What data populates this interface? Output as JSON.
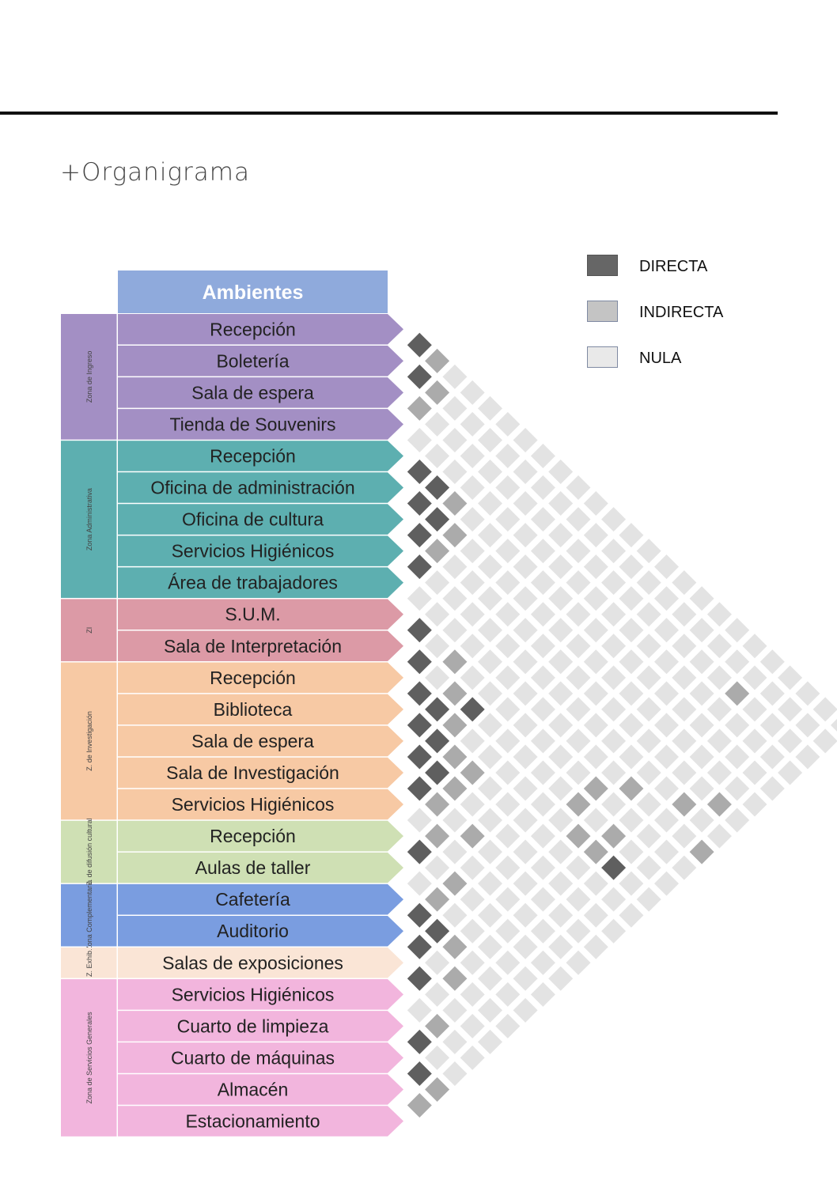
{
  "page": {
    "title": "+Organigrama"
  },
  "legend": [
    {
      "label": "DIRECTA",
      "color": "#666666",
      "border": "#555555"
    },
    {
      "label": "INDIRECTA",
      "color": "#c4c4c4",
      "border": "#7f8aa2"
    },
    {
      "label": "NULA",
      "color": "#e9e9e9",
      "border": "#7f8aa2"
    }
  ],
  "header": {
    "label": "Ambientes",
    "color": "#8faadc"
  },
  "zones": [
    {
      "label": "Zona de Ingreso",
      "color": "#a38fc4",
      "rows": [
        "Recepción",
        "Boletería",
        "Sala de espera",
        "Tienda de Souvenirs"
      ]
    },
    {
      "label": "Zona Administrativa",
      "color": "#5dafb0",
      "rows": [
        "Recepción",
        "Oficina de administración",
        "Oficina de cultura",
        "Servicios Higiénicos",
        "Área de trabajadores"
      ]
    },
    {
      "label": "ZI",
      "color": "#dc9aa6",
      "rows": [
        "S.U.M.",
        "Sala de Interpretación"
      ]
    },
    {
      "label": "Z. de Investigación",
      "color": "#f7c9a4",
      "rows": [
        "Recepción",
        "Biblioteca",
        "Sala de espera",
        "Sala de Investigación",
        "Servicios Higiénicos"
      ]
    },
    {
      "label": "Z. de difusión cultural",
      "color": "#cfe0b4",
      "rows": [
        "Recepción",
        "Aulas de taller"
      ]
    },
    {
      "label": "Zona Complementaria",
      "color": "#7a9de0",
      "rows": [
        "Cafetería",
        "Auditorio"
      ]
    },
    {
      "label": "Z. Exhib.",
      "color": "#fae5d6",
      "rows": [
        "Salas de exposiciones"
      ]
    },
    {
      "label": "Zona de Servicios Generales",
      "color": "#f2b5dd",
      "rows": [
        "Servicios Higiénicos",
        "Cuarto de limpieza",
        "Cuarto de máquinas",
        "Almacén",
        "Estacionamiento"
      ]
    }
  ],
  "relations": {
    "directa": [
      [
        1,
        2
      ],
      [
        2,
        3
      ],
      [
        5,
        6
      ],
      [
        5,
        7
      ],
      [
        6,
        7
      ],
      [
        6,
        8
      ],
      [
        7,
        8
      ],
      [
        8,
        9
      ],
      [
        10,
        11
      ],
      [
        11,
        12
      ],
      [
        12,
        13
      ],
      [
        12,
        14
      ],
      [
        13,
        14
      ],
      [
        13,
        15
      ],
      [
        14,
        15
      ],
      [
        14,
        16
      ],
      [
        15,
        16
      ],
      [
        11,
        15
      ],
      [
        12,
        24
      ],
      [
        17,
        18
      ],
      [
        19,
        20
      ],
      [
        19,
        21
      ],
      [
        20,
        21
      ],
      [
        21,
        22
      ],
      [
        23,
        24
      ],
      [
        24,
        25
      ]
    ],
    "indirecta": [
      [
        1,
        3
      ],
      [
        3,
        4
      ],
      [
        2,
        4
      ],
      [
        5,
        8
      ],
      [
        6,
        9
      ],
      [
        7,
        9
      ],
      [
        10,
        13
      ],
      [
        11,
        14
      ],
      [
        12,
        15
      ],
      [
        13,
        16
      ],
      [
        13,
        17
      ],
      [
        14,
        17
      ],
      [
        15,
        17
      ],
      [
        15,
        19
      ],
      [
        16,
        18
      ],
      [
        17,
        20
      ],
      [
        18,
        20
      ],
      [
        19,
        22
      ],
      [
        20,
        23
      ],
      [
        22,
        24
      ],
      [
        24,
        26
      ],
      [
        25,
        26
      ],
      [
        9,
        22
      ],
      [
        10,
        21
      ],
      [
        11,
        21
      ],
      [
        11,
        23
      ],
      [
        12,
        22
      ],
      [
        12,
        23
      ],
      [
        8,
        24
      ],
      [
        9,
        26
      ],
      [
        7,
        25
      ],
      [
        3,
        22
      ]
    ]
  }
}
